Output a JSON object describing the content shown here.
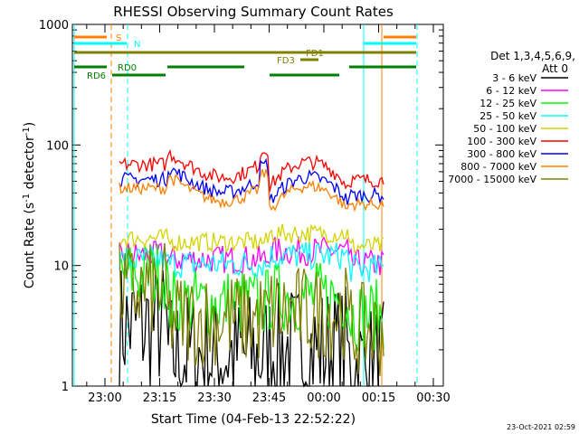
{
  "chart_data": {
    "type": "line",
    "title": "RHESSI Observing Summary Count Rates",
    "xlabel": "Start Time (04-Feb-13 22:52:22)",
    "ylabel": "Count Rate (s⁻¹ detector⁻¹)",
    "ylabel_main": "Count Rate (s",
    "ylabel_sup1": "-1",
    "ylabel_mid": " detector",
    "ylabel_sup2": "-1",
    "ylabel_end": ")",
    "y_scale": "log",
    "ylim": [
      1,
      1000
    ],
    "xlim_minutes": [
      -30,
      60
    ],
    "x_ticks": [
      {
        "label": "23:00",
        "m": -60
      },
      {
        "label": "23:15",
        "m": -45
      },
      {
        "label": "23:30",
        "m": -30
      },
      {
        "label": "23:45",
        "m": -15
      },
      {
        "label": "00:00",
        "m": 0
      },
      {
        "label": "00:15",
        "m": 15
      },
      {
        "label": "00:30",
        "m": 30
      }
    ],
    "y_ticks": [
      {
        "label": "1",
        "v": 1
      },
      {
        "label": "10",
        "v": 10
      },
      {
        "label": "100",
        "v": 100
      },
      {
        "label": "1000",
        "v": 1000
      }
    ],
    "x_ticks_minutes_since_2300": [
      0,
      15,
      30,
      45,
      60,
      75,
      90
    ],
    "legend_header": [
      "Det 1,3,4,5,6,9,",
      "Att 0"
    ],
    "legend_placement": "right",
    "series": [
      {
        "name": "3 - 6 keV",
        "color": "#000000",
        "base": 2.4,
        "noise": 0.55,
        "kind": "low"
      },
      {
        "name": "6 - 12 keV",
        "color": "#ff00ff",
        "base": 11.5,
        "noise": 0.12,
        "kind": "mid"
      },
      {
        "name": "12 - 25 keV",
        "color": "#00ff00",
        "base": 6.5,
        "noise": 0.3,
        "kind": "low2"
      },
      {
        "name": "25 - 50 keV",
        "color": "#00ffff",
        "base": 10.5,
        "noise": 0.12,
        "kind": "mid"
      },
      {
        "name": "50 - 100 keV",
        "color": "#d4d400",
        "base": 16,
        "noise": 0.08,
        "kind": "mid"
      },
      {
        "name": "100 - 300 keV",
        "color": "#ff0000",
        "base": 60,
        "noise": 0.06,
        "kind": "high"
      },
      {
        "name": "300 - 800 keV",
        "color": "#0000ff",
        "base": 45,
        "noise": 0.06,
        "kind": "high"
      },
      {
        "name": "800 - 7000 keV",
        "color": "#ff8000",
        "base": 38,
        "noise": 0.05,
        "kind": "high"
      },
      {
        "name": "7000 - 15000 keV",
        "color": "#808000",
        "base": 4.8,
        "noise": 0.4,
        "kind": "low3"
      }
    ],
    "flags": [
      {
        "label": "S",
        "color": "#ff8000"
      },
      {
        "label": "N",
        "color": "#00ffff"
      },
      {
        "label": "FD1",
        "color": "#808000"
      },
      {
        "label": "FD3",
        "color": "#808000"
      },
      {
        "label": "RD0",
        "color": "#008000"
      },
      {
        "label": "RD6",
        "color": "#008000"
      }
    ],
    "grid": false
  },
  "footer_timestamp": "23-Oct-2021 02:59"
}
